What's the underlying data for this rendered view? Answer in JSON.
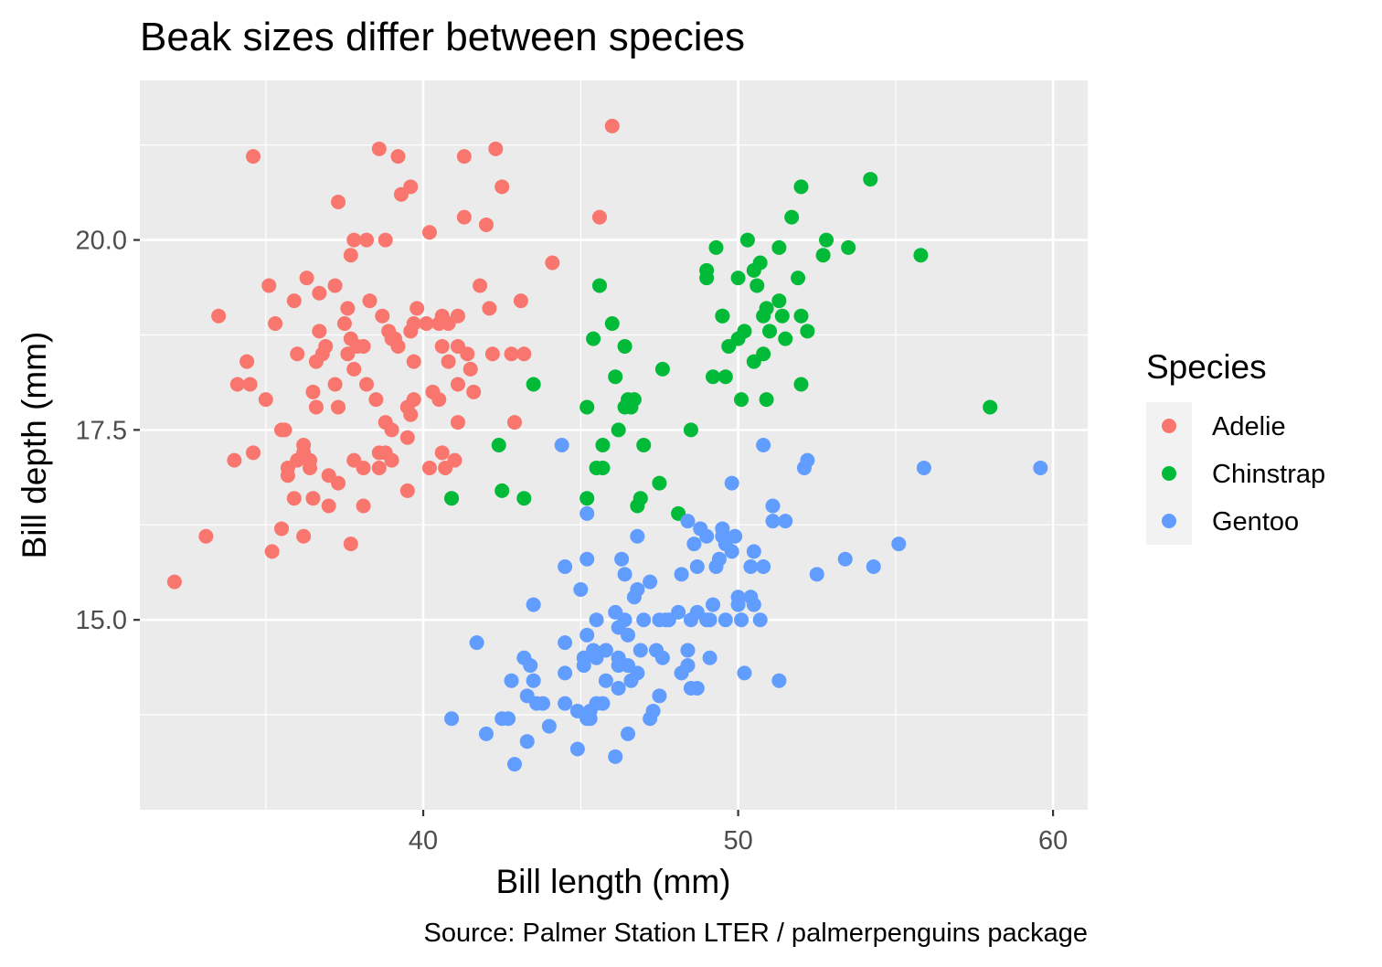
{
  "chart_data": {
    "type": "scatter",
    "title": "Beak sizes differ between species",
    "xlabel": "Bill length (mm)",
    "ylabel": "Bill depth (mm)",
    "caption": "Source: Palmer Station LTER / palmerpenguins package",
    "xlim": [
      31.0,
      61.1
    ],
    "ylim": [
      12.5,
      22.1
    ],
    "x_ticks": [
      40,
      50,
      60
    ],
    "x_tick_labels": [
      "40",
      "50",
      "60"
    ],
    "y_ticks": [
      15.0,
      17.5,
      20.0
    ],
    "y_tick_labels": [
      "15.0",
      "17.5",
      "20.0"
    ],
    "grid": true,
    "legend": {
      "title": "Species",
      "position": "right"
    },
    "series": [
      {
        "name": "Adelie",
        "color": "#F8766D",
        "points": [
          [
            32.1,
            15.5
          ],
          [
            33.1,
            16.1
          ],
          [
            33.5,
            19.0
          ],
          [
            34.0,
            17.1
          ],
          [
            34.1,
            18.1
          ],
          [
            34.4,
            18.4
          ],
          [
            34.5,
            18.1
          ],
          [
            34.6,
            21.1
          ],
          [
            34.6,
            17.2
          ],
          [
            35.0,
            17.9
          ],
          [
            35.1,
            19.4
          ],
          [
            35.2,
            15.9
          ],
          [
            35.3,
            18.9
          ],
          [
            35.5,
            16.2
          ],
          [
            35.5,
            17.5
          ],
          [
            35.6,
            17.5
          ],
          [
            35.7,
            16.9
          ],
          [
            35.7,
            17.0
          ],
          [
            35.9,
            19.2
          ],
          [
            35.9,
            16.6
          ],
          [
            36.0,
            17.1
          ],
          [
            36.0,
            18.5
          ],
          [
            36.2,
            17.2
          ],
          [
            36.2,
            17.3
          ],
          [
            36.2,
            16.1
          ],
          [
            36.3,
            19.5
          ],
          [
            36.4,
            17.0
          ],
          [
            36.4,
            17.1
          ],
          [
            36.5,
            18.0
          ],
          [
            36.5,
            16.6
          ],
          [
            36.6,
            17.8
          ],
          [
            36.6,
            18.4
          ],
          [
            36.7,
            19.3
          ],
          [
            36.7,
            18.8
          ],
          [
            36.8,
            18.5
          ],
          [
            36.9,
            18.6
          ],
          [
            37.0,
            16.9
          ],
          [
            37.0,
            16.5
          ],
          [
            37.2,
            18.1
          ],
          [
            37.2,
            19.4
          ],
          [
            37.3,
            16.8
          ],
          [
            37.3,
            17.8
          ],
          [
            37.3,
            20.5
          ],
          [
            37.5,
            18.9
          ],
          [
            37.6,
            19.1
          ],
          [
            37.6,
            18.5
          ],
          [
            37.7,
            18.7
          ],
          [
            37.7,
            19.8
          ],
          [
            37.7,
            16.0
          ],
          [
            37.8,
            17.1
          ],
          [
            37.8,
            20.0
          ],
          [
            37.8,
            18.3
          ],
          [
            37.9,
            18.6
          ],
          [
            38.1,
            17.0
          ],
          [
            38.1,
            18.6
          ],
          [
            38.1,
            16.5
          ],
          [
            38.2,
            20.0
          ],
          [
            38.2,
            18.1
          ],
          [
            38.3,
            19.2
          ],
          [
            38.5,
            17.9
          ],
          [
            38.6,
            21.2
          ],
          [
            38.6,
            17.2
          ],
          [
            38.6,
            17.0
          ],
          [
            38.7,
            19.0
          ],
          [
            38.8,
            17.2
          ],
          [
            38.8,
            20.0
          ],
          [
            38.8,
            17.6
          ],
          [
            38.9,
            18.8
          ],
          [
            39.0,
            17.5
          ],
          [
            39.0,
            17.1
          ],
          [
            39.0,
            18.7
          ],
          [
            39.1,
            18.7
          ],
          [
            39.2,
            18.6
          ],
          [
            39.2,
            21.1
          ],
          [
            39.3,
            20.6
          ],
          [
            39.5,
            17.4
          ],
          [
            39.5,
            16.7
          ],
          [
            39.5,
            17.8
          ],
          [
            39.6,
            17.7
          ],
          [
            39.6,
            18.8
          ],
          [
            39.6,
            20.7
          ],
          [
            39.7,
            17.9
          ],
          [
            39.7,
            18.4
          ],
          [
            39.7,
            18.9
          ],
          [
            39.8,
            19.1
          ],
          [
            40.1,
            18.9
          ],
          [
            40.2,
            17.0
          ],
          [
            40.2,
            20.1
          ],
          [
            40.3,
            18.0
          ],
          [
            40.5,
            17.9
          ],
          [
            40.5,
            18.9
          ],
          [
            40.6,
            17.2
          ],
          [
            40.6,
            18.6
          ],
          [
            40.6,
            19.0
          ],
          [
            40.7,
            17.0
          ],
          [
            40.8,
            18.4
          ],
          [
            40.8,
            18.9
          ],
          [
            40.9,
            16.6
          ],
          [
            41.0,
            17.1
          ],
          [
            41.1,
            17.6
          ],
          [
            41.1,
            18.1
          ],
          [
            41.1,
            19.0
          ],
          [
            41.1,
            18.6
          ],
          [
            41.3,
            20.3
          ],
          [
            41.3,
            21.1
          ],
          [
            41.4,
            18.5
          ],
          [
            41.5,
            18.3
          ],
          [
            41.6,
            18.0
          ],
          [
            41.8,
            19.4
          ],
          [
            42.0,
            20.2
          ],
          [
            42.1,
            19.1
          ],
          [
            42.2,
            18.5
          ],
          [
            42.3,
            21.2
          ],
          [
            42.5,
            20.7
          ],
          [
            42.8,
            18.5
          ],
          [
            42.9,
            17.6
          ],
          [
            43.1,
            19.2
          ],
          [
            43.2,
            18.5
          ],
          [
            44.1,
            19.7
          ],
          [
            45.6,
            20.3
          ],
          [
            46.0,
            21.5
          ]
        ]
      },
      {
        "name": "Chinstrap",
        "color": "#00BA38",
        "points": [
          [
            40.9,
            16.6
          ],
          [
            42.4,
            17.3
          ],
          [
            42.5,
            16.7
          ],
          [
            43.2,
            16.6
          ],
          [
            43.5,
            18.1
          ],
          [
            45.2,
            16.6
          ],
          [
            45.2,
            17.8
          ],
          [
            45.4,
            18.7
          ],
          [
            45.5,
            17.0
          ],
          [
            45.6,
            19.4
          ],
          [
            45.7,
            17.3
          ],
          [
            45.7,
            17.0
          ],
          [
            46.0,
            18.9
          ],
          [
            46.1,
            18.2
          ],
          [
            46.2,
            17.5
          ],
          [
            46.4,
            18.6
          ],
          [
            46.4,
            17.8
          ],
          [
            46.5,
            17.9
          ],
          [
            46.6,
            17.8
          ],
          [
            46.7,
            17.9
          ],
          [
            46.8,
            16.5
          ],
          [
            46.9,
            16.6
          ],
          [
            47.0,
            17.3
          ],
          [
            47.5,
            16.8
          ],
          [
            47.6,
            18.3
          ],
          [
            48.1,
            16.4
          ],
          [
            48.5,
            17.5
          ],
          [
            49.0,
            19.5
          ],
          [
            49.0,
            19.6
          ],
          [
            49.2,
            18.2
          ],
          [
            49.3,
            19.9
          ],
          [
            49.5,
            19.0
          ],
          [
            49.6,
            18.2
          ],
          [
            49.7,
            18.6
          ],
          [
            50.0,
            19.5
          ],
          [
            50.1,
            17.9
          ],
          [
            50.2,
            18.8
          ],
          [
            50.3,
            20.0
          ],
          [
            50.5,
            18.4
          ],
          [
            50.6,
            19.4
          ],
          [
            50.7,
            19.7
          ],
          [
            50.8,
            18.5
          ],
          [
            50.9,
            17.9
          ],
          [
            51.0,
            18.8
          ],
          [
            51.3,
            19.2
          ],
          [
            51.4,
            19.0
          ],
          [
            51.5,
            18.7
          ],
          [
            51.7,
            20.3
          ],
          [
            51.9,
            19.5
          ],
          [
            52.0,
            19.0
          ],
          [
            52.0,
            18.1
          ],
          [
            52.0,
            20.7
          ],
          [
            52.2,
            18.8
          ],
          [
            52.7,
            19.8
          ],
          [
            52.8,
            20.0
          ],
          [
            53.5,
            19.9
          ],
          [
            54.2,
            20.8
          ],
          [
            55.8,
            19.8
          ],
          [
            58.0,
            17.8
          ],
          [
            50.9,
            19.1
          ],
          [
            50.8,
            19.0
          ],
          [
            50.0,
            18.7
          ],
          [
            49.5,
            19.0
          ],
          [
            51.3,
            19.9
          ],
          [
            50.5,
            19.6
          ]
        ]
      },
      {
        "name": "Gentoo",
        "color": "#619CFF",
        "points": [
          [
            40.9,
            13.7
          ],
          [
            41.7,
            14.7
          ],
          [
            42.0,
            13.5
          ],
          [
            42.5,
            13.7
          ],
          [
            42.7,
            13.7
          ],
          [
            42.8,
            14.2
          ],
          [
            42.9,
            13.1
          ],
          [
            43.2,
            14.5
          ],
          [
            43.3,
            13.4
          ],
          [
            43.3,
            14.0
          ],
          [
            43.4,
            14.4
          ],
          [
            43.5,
            14.2
          ],
          [
            43.5,
            15.2
          ],
          [
            43.6,
            13.9
          ],
          [
            43.8,
            13.9
          ],
          [
            44.0,
            13.6
          ],
          [
            44.4,
            17.3
          ],
          [
            44.5,
            13.9
          ],
          [
            44.5,
            14.3
          ],
          [
            44.5,
            15.7
          ],
          [
            44.5,
            14.7
          ],
          [
            44.9,
            13.8
          ],
          [
            44.9,
            13.3
          ],
          [
            45.0,
            15.4
          ],
          [
            45.1,
            14.5
          ],
          [
            45.1,
            14.4
          ],
          [
            45.2,
            13.7
          ],
          [
            45.2,
            14.8
          ],
          [
            45.2,
            15.8
          ],
          [
            45.2,
            16.4
          ],
          [
            45.3,
            13.7
          ],
          [
            45.3,
            13.8
          ],
          [
            45.4,
            14.6
          ],
          [
            45.5,
            13.9
          ],
          [
            45.5,
            14.5
          ],
          [
            45.5,
            15.0
          ],
          [
            45.7,
            13.9
          ],
          [
            45.8,
            14.2
          ],
          [
            45.8,
            14.6
          ],
          [
            46.1,
            13.2
          ],
          [
            46.1,
            15.1
          ],
          [
            46.2,
            14.1
          ],
          [
            46.2,
            14.4
          ],
          [
            46.2,
            14.5
          ],
          [
            46.3,
            15.8
          ],
          [
            46.4,
            15.0
          ],
          [
            46.4,
            15.6
          ],
          [
            46.5,
            14.4
          ],
          [
            46.5,
            13.5
          ],
          [
            46.6,
            14.2
          ],
          [
            46.7,
            15.3
          ],
          [
            46.8,
            14.3
          ],
          [
            46.8,
            15.4
          ],
          [
            46.8,
            16.1
          ],
          [
            46.9,
            14.6
          ],
          [
            47.2,
            13.7
          ],
          [
            47.2,
            15.5
          ],
          [
            47.3,
            13.8
          ],
          [
            47.4,
            14.6
          ],
          [
            47.5,
            14.0
          ],
          [
            47.5,
            15.0
          ],
          [
            47.6,
            14.5
          ],
          [
            47.7,
            15.0
          ],
          [
            47.8,
            15.0
          ],
          [
            48.1,
            15.1
          ],
          [
            48.2,
            14.3
          ],
          [
            48.2,
            15.6
          ],
          [
            48.4,
            14.4
          ],
          [
            48.4,
            16.3
          ],
          [
            48.4,
            14.6
          ],
          [
            48.5,
            14.1
          ],
          [
            48.5,
            15.0
          ],
          [
            48.6,
            16.0
          ],
          [
            48.7,
            14.1
          ],
          [
            48.7,
            15.1
          ],
          [
            48.7,
            15.7
          ],
          [
            48.8,
            16.2
          ],
          [
            49.0,
            16.1
          ],
          [
            49.1,
            14.5
          ],
          [
            49.1,
            15.0
          ],
          [
            49.2,
            15.2
          ],
          [
            49.3,
            15.7
          ],
          [
            49.4,
            15.8
          ],
          [
            49.5,
            16.1
          ],
          [
            49.5,
            16.2
          ],
          [
            49.6,
            15.0
          ],
          [
            49.6,
            16.0
          ],
          [
            49.8,
            15.9
          ],
          [
            49.8,
            16.8
          ],
          [
            49.9,
            16.1
          ],
          [
            50.0,
            15.2
          ],
          [
            50.0,
            15.3
          ],
          [
            50.1,
            15.0
          ],
          [
            50.2,
            14.3
          ],
          [
            50.4,
            15.3
          ],
          [
            50.4,
            15.7
          ],
          [
            50.5,
            15.2
          ],
          [
            50.5,
            15.9
          ],
          [
            50.7,
            15.0
          ],
          [
            50.8,
            15.7
          ],
          [
            50.8,
            17.3
          ],
          [
            51.1,
            16.3
          ],
          [
            51.1,
            16.5
          ],
          [
            51.3,
            14.2
          ],
          [
            51.5,
            16.3
          ],
          [
            52.1,
            17.0
          ],
          [
            52.2,
            17.1
          ],
          [
            52.5,
            15.6
          ],
          [
            53.4,
            15.8
          ],
          [
            54.3,
            15.7
          ],
          [
            55.1,
            16.0
          ],
          [
            55.9,
            17.0
          ],
          [
            59.6,
            17.0
          ],
          [
            46.2,
            14.9
          ],
          [
            46.5,
            14.8
          ],
          [
            47.0,
            15.0
          ],
          [
            49.0,
            15.0
          ]
        ]
      }
    ]
  }
}
